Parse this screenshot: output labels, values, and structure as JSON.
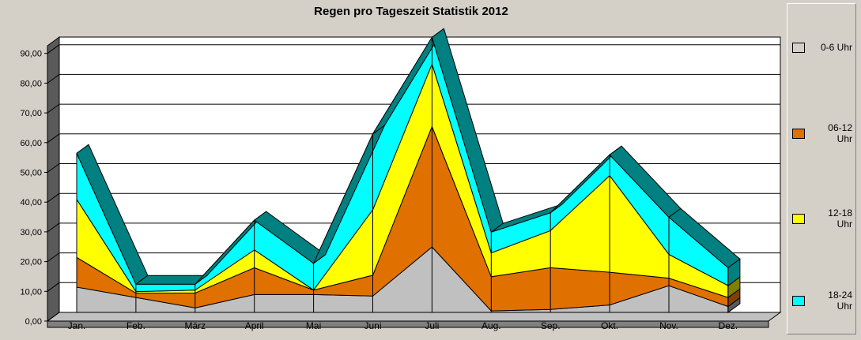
{
  "chart_data": {
    "type": "area",
    "stacked": true,
    "title": "Regen pro Tageszeit Statistik 2012",
    "categories": [
      "Jan.",
      "Feb.",
      "März",
      "April",
      "Mai",
      "Juni",
      "Juli",
      "Aug.",
      "Sep.",
      "Okt.",
      "Nov.",
      "Dez."
    ],
    "ylim": [
      0,
      90
    ],
    "yticks": [
      "0,00",
      "10,00",
      "20,00",
      "30,00",
      "40,00",
      "50,00",
      "60,00",
      "70,00",
      "80,00",
      "90,00"
    ],
    "grid": true,
    "legend_position": "right",
    "series": [
      {
        "name": "0-6 Uhr",
        "color": "#c0c0c0",
        "values": [
          8.5,
          5.0,
          1.5,
          6.0,
          6.0,
          5.5,
          22.0,
          0.5,
          1.0,
          2.5,
          9.0,
          2.0
        ]
      },
      {
        "name": "06-12 Uhr",
        "color": "#e07000",
        "values": [
          10.0,
          1.5,
          5.0,
          9.0,
          1.5,
          7.0,
          40.5,
          11.5,
          14.0,
          11.0,
          2.5,
          3.0
        ]
      },
      {
        "name": "12-18 Uhr",
        "color": "#ffff00",
        "values": [
          19.5,
          0.5,
          1.0,
          6.0,
          0.0,
          22.0,
          21.0,
          8.0,
          12.5,
          32.5,
          8.0,
          4.0
        ]
      },
      {
        "name": "18-24 Uhr",
        "color": "#00ffff",
        "values": [
          15.5,
          2.5,
          2.0,
          10.0,
          9.0,
          25.5,
          9.0,
          7.0,
          6.0,
          7.0,
          12.5,
          6.0
        ]
      }
    ]
  }
}
